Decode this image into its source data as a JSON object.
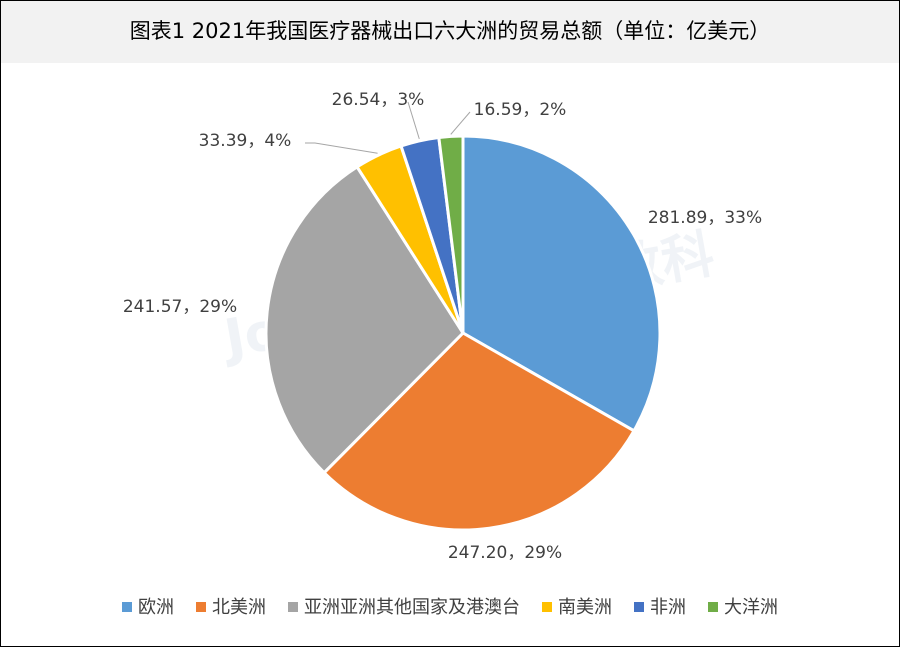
{
  "chart_data": {
    "type": "pie",
    "title": "图表1  2021年我国医疗器械出口六大洲的贸易总额（单位：亿美元）",
    "watermark": "Joinchain.众成数科",
    "categories": [
      "欧洲",
      "北美洲",
      "亚洲亚洲其他国家及港澳台",
      "南美洲",
      "非洲",
      "大洋洲"
    ],
    "values": [
      281.89,
      247.2,
      241.57,
      33.39,
      26.54,
      16.59
    ],
    "value_labels": [
      "281.89，33%",
      "247.20，29%",
      "241.57，29%",
      "33.39，4%",
      "26.54，3%",
      "16.59，2%"
    ],
    "colors": [
      "#5b9bd5",
      "#ed7d31",
      "#a5a5a5",
      "#ffc000",
      "#4472c4",
      "#70ad47"
    ],
    "legend": "bottom"
  }
}
